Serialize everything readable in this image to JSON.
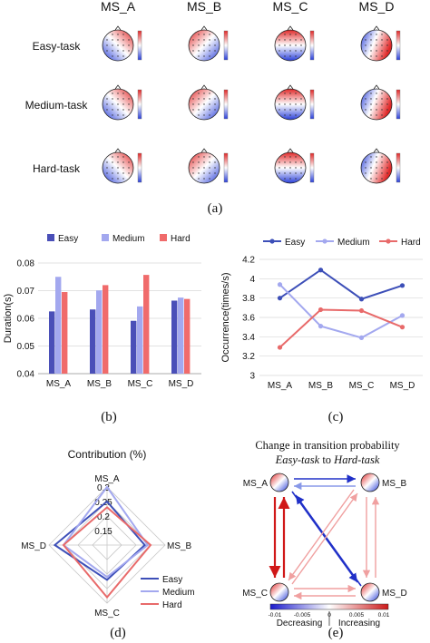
{
  "panel_a": {
    "columns": [
      "MS_A",
      "MS_B",
      "MS_C",
      "MS_D"
    ],
    "rows": [
      "Easy-task",
      "Medium-task",
      "Hard-task"
    ],
    "caption": "(a)"
  },
  "panel_b": {
    "caption": "(b)"
  },
  "panel_c": {
    "caption": "(c)"
  },
  "panel_d": {
    "caption": "(d)"
  },
  "panel_e": {
    "caption": "(e)",
    "title": "Change in transition probability",
    "subtitle_part1": "Easy-task",
    "subtitle_part2": " to ",
    "subtitle_part3": "Hard-task",
    "colorbar_ticks": [
      "-0.01",
      "-0.005",
      "0",
      "0.005",
      "0.01"
    ],
    "label_decreasing": "Decreasing",
    "label_increasing": "Increasing",
    "colorbar_colors": [
      "#1a1acc",
      "#ffffff",
      "#cc1a1a"
    ]
  },
  "chart_data": [
    {
      "type": "bar",
      "categories": [
        "MS_A",
        "MS_B",
        "MS_C",
        "MS_D"
      ],
      "series": [
        {
          "name": "Easy",
          "values": [
            0.0625,
            0.0632,
            0.0591,
            0.0664
          ],
          "color": "#4a4fb8"
        },
        {
          "name": "Medium",
          "values": [
            0.075,
            0.0701,
            0.0643,
            0.0675
          ],
          "color": "#a3a8ef"
        },
        {
          "name": "Hard",
          "values": [
            0.0695,
            0.072,
            0.0757,
            0.067
          ],
          "color": "#f06b6b"
        }
      ],
      "ylabel": "Duration(s)",
      "ylim": [
        0.04,
        0.08
      ],
      "yticks": [
        "0.04",
        "0.05",
        "0.06",
        "0.07",
        "0.08"
      ],
      "grid": true
    },
    {
      "type": "line",
      "categories": [
        "MS_A",
        "MS_B",
        "MS_C",
        "MS_D"
      ],
      "series": [
        {
          "name": "Easy",
          "values": [
            3.8,
            4.09,
            3.79,
            3.93
          ],
          "color": "#3d4fb8"
        },
        {
          "name": "Medium",
          "values": [
            3.94,
            3.51,
            3.39,
            3.62
          ],
          "color": "#a3a8ef"
        },
        {
          "name": "Hard",
          "values": [
            3.29,
            3.68,
            3.67,
            3.5
          ],
          "color": "#e86a6a"
        }
      ],
      "ylabel": "Occurrence(times/s)",
      "ylim": [
        3.0,
        4.2
      ],
      "yticks": [
        "3",
        "3.2",
        "3.4",
        "3.6",
        "3.8",
        "4",
        "4.2"
      ],
      "grid": true
    },
    {
      "type": "radar",
      "title": "Contribution (%)",
      "axes": [
        "MS_A",
        "MS_B",
        "MS_C",
        "MS_D"
      ],
      "rticks": [
        "0.15",
        "0.2",
        "0.25",
        "0.3"
      ],
      "rlim": [
        0.1,
        0.3
      ],
      "series": [
        {
          "name": "Easy",
          "values": [
            0.25,
            0.23,
            0.22,
            0.28
          ],
          "color": "#3d4fb8"
        },
        {
          "name": "Medium",
          "values": [
            0.3,
            0.24,
            0.21,
            0.25
          ],
          "color": "#a3a8ef"
        },
        {
          "name": "Hard",
          "values": [
            0.23,
            0.25,
            0.28,
            0.25
          ],
          "color": "#e86a6a"
        }
      ]
    }
  ]
}
